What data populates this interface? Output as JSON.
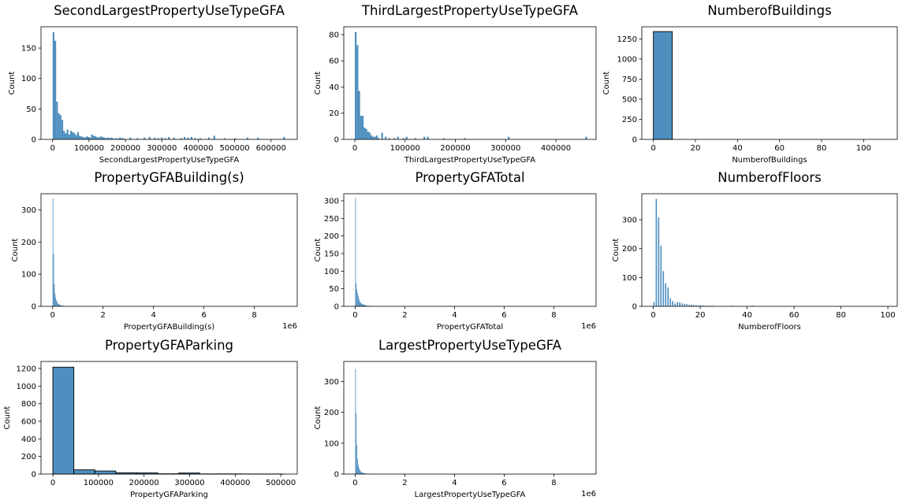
{
  "chart_data": [
    {
      "type": "bar",
      "title": "SecondLargestPropertyUseTypeGFA",
      "xlabel": "SecondLargestPropertyUseTypeGFA",
      "ylabel": "Count",
      "xlim": [
        -32000,
        672000
      ],
      "ylim": [
        0,
        185
      ],
      "xticks": [
        0,
        100000,
        200000,
        300000,
        400000,
        500000,
        600000
      ],
      "xtick_labels": [
        "0",
        "100000",
        "200000",
        "300000",
        "400000",
        "500000",
        "600000"
      ],
      "yticks": [
        0,
        50,
        100,
        150
      ],
      "offset_text": "",
      "color": "#4f8fbf",
      "bin_width": 4800,
      "bins": [
        0,
        4800,
        9600,
        14400,
        19200,
        24000,
        28800,
        33600,
        38400,
        43200,
        48000,
        52800,
        57600,
        62400,
        67200,
        72000,
        76800,
        81600,
        86400,
        91200,
        96000,
        100800,
        105600,
        110400,
        115200,
        120000,
        124800,
        129600,
        134400,
        139200,
        144000,
        148800,
        153600,
        158400,
        163200,
        168000,
        172800,
        177600,
        182400,
        187200,
        192000,
        211200,
        230400,
        249600,
        264000,
        278400,
        288000,
        297600,
        307200,
        316800,
        331200,
        350400,
        360000,
        369600,
        379200,
        388800,
        403200,
        427200,
        441600,
        470400,
        499200,
        532800,
        561600,
        633600
      ],
      "counts": [
        176,
        162,
        62,
        43,
        40,
        32,
        14,
        10,
        16,
        8,
        14,
        12,
        10,
        7,
        12,
        6,
        5,
        4,
        3,
        5,
        4,
        3,
        8,
        6,
        5,
        4,
        3,
        5,
        4,
        3,
        2,
        3,
        2,
        3,
        2,
        1,
        2,
        1,
        3,
        2,
        2,
        3,
        2,
        3,
        4,
        3,
        2,
        3,
        2,
        4,
        3,
        2,
        4,
        3,
        4,
        2,
        2,
        3,
        6,
        2,
        2,
        3,
        3,
        4
      ]
    },
    {
      "type": "bar",
      "title": "ThirdLargestPropertyUseTypeGFA",
      "xlabel": "ThirdLargestPropertyUseTypeGFA",
      "ylabel": "Count",
      "xlim": [
        -22000,
        480000
      ],
      "ylim": [
        0,
        86
      ],
      "xticks": [
        0,
        100000,
        200000,
        300000,
        400000
      ],
      "xtick_labels": [
        "0",
        "100000",
        "200000",
        "300000",
        "400000"
      ],
      "yticks": [
        0,
        20,
        40,
        60,
        80
      ],
      "offset_text": "",
      "color": "#4f8fbf",
      "bin_width": 3500,
      "bins": [
        0,
        3500,
        7000,
        10500,
        14000,
        17500,
        21000,
        24500,
        28000,
        31500,
        35000,
        38500,
        42000,
        45500,
        52500,
        59500,
        66500,
        77000,
        84000,
        94500,
        101500,
        119000,
        136500,
        143500,
        175000,
        217000,
        304500,
        458500
      ],
      "counts": [
        82,
        72,
        37,
        18,
        18,
        9,
        8,
        6,
        5,
        3,
        2,
        2,
        3,
        1,
        5,
        2,
        1,
        1,
        2,
        1,
        2,
        1,
        2,
        2,
        1,
        1,
        2,
        2
      ]
    },
    {
      "type": "bar",
      "title": "NumberofBuildings",
      "xlabel": "NumberofBuildings",
      "ylabel": "Count",
      "xlim": [
        -5.5,
        116
      ],
      "ylim": [
        0,
        1400
      ],
      "xticks": [
        0,
        20,
        40,
        60,
        80,
        100
      ],
      "xtick_labels": [
        "0",
        "20",
        "40",
        "60",
        "80",
        "100"
      ],
      "yticks": [
        0,
        250,
        500,
        750,
        1000,
        1250
      ],
      "offset_text": "",
      "color": "#4f8fbf",
      "bin_width": 9,
      "bins": [
        0
      ],
      "counts": [
        1340
      ]
    },
    {
      "type": "bar",
      "title": "PropertyGFABuilding(s)",
      "xlabel": "PropertyGFABuilding(s)",
      "ylabel": "Count",
      "xlim": [
        -460000,
        9700000
      ],
      "ylim": [
        0,
        350
      ],
      "xticks": [
        0,
        2000000,
        4000000,
        6000000,
        8000000
      ],
      "xtick_labels": [
        "0",
        "2",
        "4",
        "6",
        "8"
      ],
      "yticks": [
        0,
        100,
        200,
        300
      ],
      "offset_text": "1e6",
      "color": "#4f8fbf",
      "bin_width": 27000,
      "bins": [
        0,
        27000,
        54000,
        81000,
        108000,
        135000,
        162000,
        189000,
        216000,
        243000,
        270000,
        297000,
        324000,
        351000,
        378000,
        405000
      ],
      "counts": [
        335,
        162,
        68,
        42,
        28,
        20,
        14,
        10,
        8,
        6,
        5,
        4,
        3,
        3,
        2,
        2
      ]
    },
    {
      "type": "bar",
      "title": "PropertyGFATotal",
      "xlabel": "PropertyGFATotal",
      "ylabel": "Count",
      "xlim": [
        -460000,
        9700000
      ],
      "ylim": [
        0,
        320
      ],
      "xticks": [
        0,
        2000000,
        4000000,
        6000000,
        8000000
      ],
      "xtick_labels": [
        "0",
        "2",
        "4",
        "6",
        "8"
      ],
      "yticks": [
        0,
        50,
        100,
        150,
        200,
        250,
        300
      ],
      "offset_text": "1e6",
      "color": "#4f8fbf",
      "bin_width": 27000,
      "bins": [
        0,
        27000,
        54000,
        81000,
        108000,
        135000,
        162000,
        189000,
        216000,
        243000,
        270000,
        297000,
        324000,
        351000,
        378000,
        405000,
        432000,
        459000,
        513000,
        594000,
        729000
      ],
      "counts": [
        308,
        65,
        48,
        38,
        30,
        22,
        16,
        12,
        10,
        8,
        7,
        6,
        5,
        4,
        4,
        3,
        3,
        2,
        2,
        2,
        1
      ]
    },
    {
      "type": "bar",
      "title": "NumberofFloors",
      "xlabel": "NumberofFloors",
      "ylabel": "Count",
      "xlim": [
        -4.9,
        104
      ],
      "ylim": [
        0,
        390
      ],
      "xticks": [
        0,
        20,
        40,
        60,
        80,
        100
      ],
      "xtick_labels": [
        "0",
        "20",
        "40",
        "60",
        "80",
        "100"
      ],
      "yticks": [
        0,
        100,
        200,
        300
      ],
      "offset_text": "",
      "color": "#4f8fbf",
      "bin_width": 0.55,
      "bins": [
        0,
        1,
        2,
        3,
        4,
        5,
        6,
        7,
        8,
        9,
        10,
        11,
        12,
        13,
        14,
        15,
        16,
        17,
        18,
        19,
        20,
        21,
        22,
        23,
        24,
        25,
        33,
        42
      ],
      "counts": [
        15,
        372,
        308,
        210,
        122,
        80,
        65,
        28,
        18,
        10,
        15,
        14,
        10,
        9,
        8,
        6,
        6,
        5,
        4,
        3,
        3,
        3,
        2,
        2,
        3,
        2,
        3,
        3
      ]
    },
    {
      "type": "bar",
      "title": "PropertyGFAParking",
      "xlabel": "PropertyGFAParking",
      "ylabel": "Count",
      "xlim": [
        -26000,
        536000
      ],
      "ylim": [
        0,
        1280
      ],
      "xticks": [
        0,
        100000,
        200000,
        300000,
        400000,
        500000
      ],
      "xtick_labels": [
        "0",
        "100000",
        "200000",
        "300000",
        "400000",
        "500000"
      ],
      "yticks": [
        0,
        200,
        400,
        600,
        800,
        1000,
        1200
      ],
      "offset_text": "",
      "color": "#4f8fbf",
      "bin_width": 46000,
      "bins": [
        0,
        46000,
        92000,
        138000,
        184000,
        230000,
        276000,
        322000,
        368000,
        414000,
        460000
      ],
      "counts": [
        1215,
        48,
        35,
        15,
        13,
        3,
        12,
        2,
        2,
        1,
        1
      ]
    },
    {
      "type": "bar",
      "title": "LargestPropertyUseTypeGFA",
      "xlabel": "LargestPropertyUseTypeGFA",
      "ylabel": "Count",
      "xlim": [
        -460000,
        9700000
      ],
      "ylim": [
        0,
        365
      ],
      "xticks": [
        0,
        2000000,
        4000000,
        6000000,
        8000000
      ],
      "xtick_labels": [
        "0",
        "2",
        "4",
        "6",
        "8"
      ],
      "yticks": [
        0,
        100,
        200,
        300
      ],
      "offset_text": "1e6",
      "color": "#4f8fbf",
      "bin_width": 27000,
      "bins": [
        0,
        27000,
        54000,
        81000,
        108000,
        135000,
        162000,
        189000,
        216000,
        243000,
        270000,
        297000,
        324000,
        351000,
        378000,
        459000,
        540000,
        675000,
        1620000
      ],
      "counts": [
        340,
        198,
        95,
        50,
        30,
        22,
        15,
        11,
        8,
        6,
        5,
        4,
        4,
        3,
        3,
        2,
        2,
        1,
        1
      ]
    }
  ]
}
